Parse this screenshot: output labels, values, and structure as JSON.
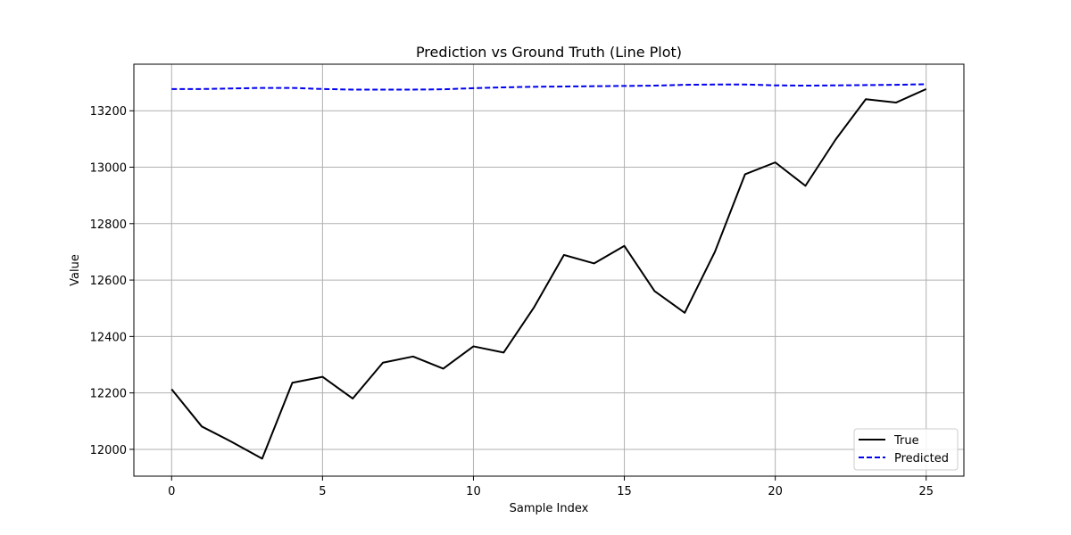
{
  "chart_data": {
    "type": "line",
    "title": "Prediction vs Ground Truth (Line Plot)",
    "xlabel": "Sample Index",
    "ylabel": "Value",
    "xlim": [
      -1.25,
      26.25
    ],
    "ylim": [
      11905,
      13365
    ],
    "xticks": [
      0,
      5,
      10,
      15,
      20,
      25
    ],
    "yticks": [
      12000,
      12200,
      12400,
      12600,
      12800,
      13000,
      13200
    ],
    "grid": true,
    "legend_position": "lower-right",
    "x": [
      0,
      1,
      2,
      3,
      4,
      5,
      6,
      7,
      8,
      9,
      10,
      11,
      12,
      13,
      14,
      15,
      16,
      17,
      18,
      19,
      20,
      21,
      22,
      23,
      24,
      25
    ],
    "series": [
      {
        "name": "True",
        "color": "#000000",
        "style": "solid",
        "values": [
          12213,
          12081,
          12026,
          11967,
          12236,
          12257,
          12180,
          12307,
          12329,
          12286,
          12365,
          12343,
          12502,
          12689,
          12659,
          12721,
          12561,
          12484,
          12700,
          12975,
          13017,
          12934,
          13098,
          13241,
          13229,
          13277
        ]
      },
      {
        "name": "Predicted",
        "color": "#0000ee",
        "style": "dashed",
        "values": [
          13277,
          13277,
          13279,
          13281,
          13281,
          13277,
          13275,
          13275,
          13275,
          13276,
          13280,
          13283,
          13285,
          13286,
          13287,
          13288,
          13289,
          13292,
          13293,
          13293,
          13290,
          13289,
          13290,
          13291,
          13292,
          13294
        ]
      }
    ]
  }
}
